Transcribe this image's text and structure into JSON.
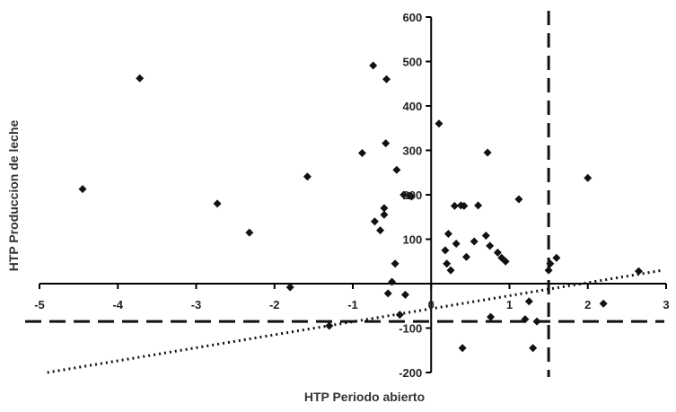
{
  "chart_data": {
    "type": "scatter",
    "title": "",
    "xlabel": "HTP Periodo abierto",
    "ylabel": "HTP Produccion de leche",
    "xlim": [
      -5,
      3
    ],
    "ylim": [
      -200,
      600
    ],
    "xticks": [
      -5,
      -4,
      -3,
      -2,
      -1,
      0,
      1,
      2,
      3
    ],
    "yticks": [
      -200,
      -100,
      0,
      100,
      200,
      300,
      400,
      500,
      600
    ],
    "x_tick_labels": [
      "-5",
      "-4",
      "-3",
      "-2",
      "-1",
      "0",
      "1",
      "2",
      "3"
    ],
    "y_tick_labels": [
      "-200",
      "-100",
      "",
      "100",
      "200",
      "300",
      "400",
      "500",
      "600"
    ],
    "grid": false,
    "legend": "none",
    "colors": {
      "points": "#111111",
      "axes": "#000000",
      "reference_lines": "#111111",
      "trend_line": "#111111"
    },
    "reference_lines": {
      "vertical_dashed_x": 1.5,
      "horizontal_dashed_y": -85
    },
    "trend_line": {
      "style": "dotted",
      "x": [
        -4.9,
        2.95
      ],
      "y": [
        -200,
        30
      ]
    },
    "series": [
      {
        "marker": "diamond",
        "points": [
          [
            -4.45,
            213
          ],
          [
            -3.72,
            462
          ],
          [
            -2.73,
            180
          ],
          [
            -2.32,
            115
          ],
          [
            -1.8,
            -8
          ],
          [
            -1.58,
            241
          ],
          [
            -0.88,
            294
          ],
          [
            -0.74,
            491
          ],
          [
            -0.72,
            140
          ],
          [
            -0.65,
            120
          ],
          [
            -0.6,
            170
          ],
          [
            -0.6,
            155
          ],
          [
            -0.58,
            316
          ],
          [
            -0.57,
            460
          ],
          [
            -0.55,
            -22
          ],
          [
            -0.5,
            4
          ],
          [
            -0.46,
            45
          ],
          [
            -0.44,
            256
          ],
          [
            -0.4,
            -70
          ],
          [
            -0.35,
            200
          ],
          [
            -0.33,
            -25
          ],
          [
            -0.28,
            198
          ],
          [
            -0.25,
            196
          ],
          [
            0.1,
            360
          ],
          [
            0.18,
            75
          ],
          [
            0.2,
            45
          ],
          [
            0.22,
            112
          ],
          [
            0.25,
            30
          ],
          [
            0.3,
            175
          ],
          [
            0.32,
            90
          ],
          [
            0.38,
            176
          ],
          [
            0.4,
            -145
          ],
          [
            0.42,
            175
          ],
          [
            0.45,
            60
          ],
          [
            0.55,
            95
          ],
          [
            0.6,
            176
          ],
          [
            0.7,
            108
          ],
          [
            0.72,
            295
          ],
          [
            0.75,
            85
          ],
          [
            0.76,
            -75
          ],
          [
            0.85,
            70
          ],
          [
            0.9,
            58
          ],
          [
            0.95,
            50
          ],
          [
            1.12,
            190
          ],
          [
            1.2,
            -80
          ],
          [
            1.25,
            -40
          ],
          [
            1.3,
            -145
          ],
          [
            1.35,
            -85
          ],
          [
            1.5,
            30
          ],
          [
            1.52,
            45
          ],
          [
            1.6,
            58
          ],
          [
            2.0,
            238
          ],
          [
            2.2,
            -45
          ],
          [
            2.65,
            28
          ],
          [
            -1.3,
            -95
          ]
        ]
      }
    ]
  }
}
